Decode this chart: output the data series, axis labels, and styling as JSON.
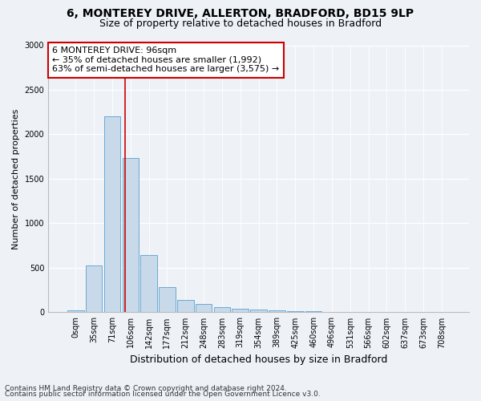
{
  "title_line1": "6, MONTEREY DRIVE, ALLERTON, BRADFORD, BD15 9LP",
  "title_line2": "Size of property relative to detached houses in Bradford",
  "xlabel": "Distribution of detached houses by size in Bradford",
  "ylabel": "Number of detached properties",
  "bar_color": "#c8d9ea",
  "bar_edge_color": "#6aaad4",
  "vline_color": "#cc0000",
  "vline_position": 2.71,
  "annotation_title": "6 MONTEREY DRIVE: 96sqm",
  "annotation_line1": "← 35% of detached houses are smaller (1,992)",
  "annotation_line2": "63% of semi-detached houses are larger (3,575) →",
  "annotation_box_color": "#ffffff",
  "annotation_box_edge": "#cc0000",
  "categories": [
    "0sqm",
    "35sqm",
    "71sqm",
    "106sqm",
    "142sqm",
    "177sqm",
    "212sqm",
    "248sqm",
    "283sqm",
    "319sqm",
    "354sqm",
    "389sqm",
    "425sqm",
    "460sqm",
    "496sqm",
    "531sqm",
    "566sqm",
    "602sqm",
    "637sqm",
    "673sqm",
    "708sqm"
  ],
  "values": [
    25,
    530,
    2200,
    1730,
    640,
    280,
    140,
    90,
    55,
    40,
    30,
    20,
    15,
    10,
    5,
    2,
    1,
    0,
    0,
    0,
    0
  ],
  "ylim": [
    0,
    3000
  ],
  "yticks": [
    0,
    500,
    1000,
    1500,
    2000,
    2500,
    3000
  ],
  "background_color": "#eef2f7",
  "plot_background": "#eef2f7",
  "footer_line1": "Contains HM Land Registry data © Crown copyright and database right 2024.",
  "footer_line2": "Contains public sector information licensed under the Open Government Licence v3.0.",
  "title_fontsize": 10,
  "subtitle_fontsize": 9,
  "ylabel_fontsize": 8,
  "xlabel_fontsize": 9,
  "tick_fontsize": 7,
  "annotation_fontsize": 8,
  "footer_fontsize": 6.5
}
